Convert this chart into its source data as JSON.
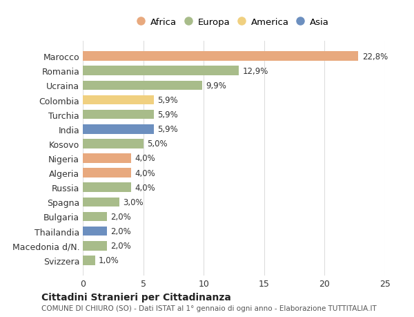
{
  "categories": [
    "Marocco",
    "Romania",
    "Ucraina",
    "Colombia",
    "Turchia",
    "India",
    "Kosovo",
    "Nigeria",
    "Algeria",
    "Russia",
    "Spagna",
    "Bulgaria",
    "Thailandia",
    "Macedonia d/N.",
    "Svizzera"
  ],
  "values": [
    22.8,
    12.9,
    9.9,
    5.9,
    5.9,
    5.9,
    5.0,
    4.0,
    4.0,
    4.0,
    3.0,
    2.0,
    2.0,
    2.0,
    1.0
  ],
  "labels": [
    "22,8%",
    "12,9%",
    "9,9%",
    "5,9%",
    "5,9%",
    "5,9%",
    "5,0%",
    "4,0%",
    "4,0%",
    "4,0%",
    "3,0%",
    "2,0%",
    "2,0%",
    "2,0%",
    "1,0%"
  ],
  "continents": [
    "Africa",
    "Europa",
    "Europa",
    "America",
    "Europa",
    "Asia",
    "Europa",
    "Africa",
    "Africa",
    "Europa",
    "Europa",
    "Europa",
    "Asia",
    "Europa",
    "Europa"
  ],
  "colors": {
    "Africa": "#E8A97E",
    "Europa": "#A8BC8A",
    "America": "#F0D080",
    "Asia": "#6C8FBF"
  },
  "legend_order": [
    "Africa",
    "Europa",
    "America",
    "Asia"
  ],
  "title": "Cittadini Stranieri per Cittadinanza",
  "subtitle": "COMUNE DI CHIURO (SO) - Dati ISTAT al 1° gennaio di ogni anno - Elaborazione TUTTITALIA.IT",
  "xlim": [
    0,
    25
  ],
  "xticks": [
    0,
    5,
    10,
    15,
    20,
    25
  ],
  "background_color": "#ffffff",
  "grid_color": "#dddddd",
  "bar_height": 0.65
}
